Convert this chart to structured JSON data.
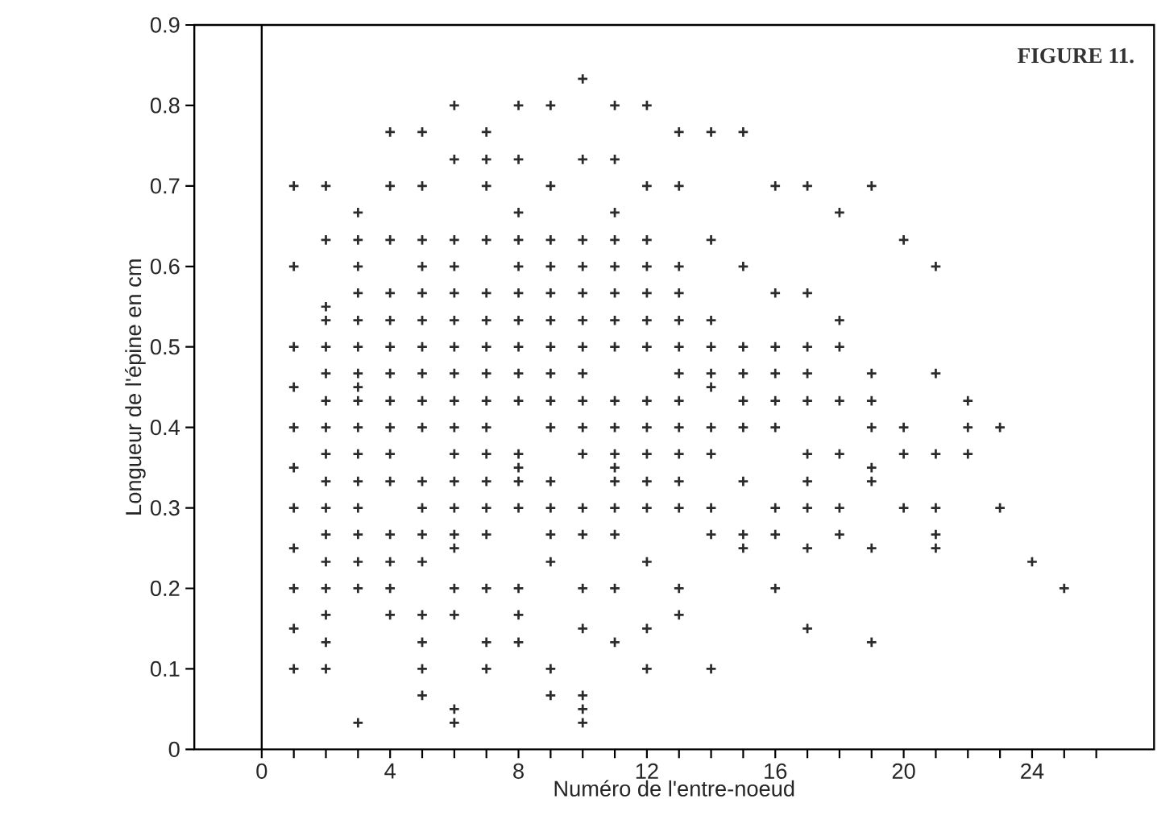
{
  "chart_data": {
    "type": "scatter",
    "xlabel": "Numéro de l'entre-noeud",
    "ylabel": "Longueur de l'épine en cm",
    "annotations": [
      "FIGURE 11."
    ],
    "xlim": [
      -2.1,
      27.8
    ],
    "ylim": [
      0,
      0.9
    ],
    "xticks": [
      0,
      {
        "value": 1,
        "label": null
      },
      {
        "value": 2,
        "label": null
      },
      {
        "value": 3,
        "label": null
      },
      4,
      {
        "value": 5,
        "label": null
      },
      {
        "value": 6,
        "label": null
      },
      {
        "value": 7,
        "label": null
      },
      8,
      {
        "value": 9,
        "label": null
      },
      {
        "value": 10,
        "label": null
      },
      {
        "value": 11,
        "label": null
      },
      12,
      {
        "value": 13,
        "label": null
      },
      {
        "value": 14,
        "label": null
      },
      {
        "value": 15,
        "label": null
      },
      16,
      {
        "value": 17,
        "label": null
      },
      {
        "value": 18,
        "label": null
      },
      {
        "value": 19,
        "label": null
      },
      20,
      {
        "value": 21,
        "label": null
      },
      {
        "value": 22,
        "label": null
      },
      {
        "value": 23,
        "label": null
      },
      24,
      {
        "value": 25,
        "label": null
      },
      {
        "value": 26,
        "label": null
      }
    ],
    "yticks": [
      0,
      0.1,
      0.2,
      0.3,
      0.4,
      0.5,
      0.6,
      0.7,
      0.8,
      0.9
    ],
    "ref_lines": [
      {
        "axis": "x",
        "value": 0
      }
    ],
    "grid": false,
    "marker": "cross",
    "series": [
      {
        "color": "#2b2b2b",
        "x": [
          1,
          1,
          1,
          1,
          1,
          1,
          1,
          1,
          1,
          1,
          1
        ],
        "values": [
          0.7,
          0.6,
          0.5,
          0.45,
          0.4,
          0.35,
          0.3,
          0.25,
          0.2,
          0.15,
          0.1
        ]
      },
      {
        "color": "#2b2b2b",
        "x": [
          2,
          2,
          2,
          2,
          2,
          2,
          2,
          2,
          2,
          2,
          2,
          2,
          2,
          2,
          2,
          2,
          2
        ],
        "values": [
          0.7,
          0.633,
          0.55,
          0.533,
          0.5,
          0.467,
          0.433,
          0.4,
          0.367,
          0.333,
          0.3,
          0.267,
          0.233,
          0.2,
          0.167,
          0.133,
          0.1
        ]
      },
      {
        "color": "#2b2b2b",
        "x": [
          3,
          3,
          3,
          3,
          3,
          3,
          3,
          3,
          3,
          3,
          3,
          3,
          3,
          3,
          3,
          3,
          3
        ],
        "values": [
          0.667,
          0.633,
          0.6,
          0.567,
          0.533,
          0.5,
          0.467,
          0.45,
          0.433,
          0.4,
          0.367,
          0.333,
          0.3,
          0.267,
          0.233,
          0.2,
          0.033
        ]
      },
      {
        "color": "#2b2b2b",
        "x": [
          4,
          4,
          4,
          4,
          4,
          4,
          4,
          4,
          4,
          4,
          4,
          4,
          4,
          4,
          4
        ],
        "values": [
          0.767,
          0.7,
          0.633,
          0.567,
          0.533,
          0.5,
          0.467,
          0.433,
          0.4,
          0.367,
          0.333,
          0.267,
          0.233,
          0.2,
          0.167
        ]
      },
      {
        "color": "#2b2b2b",
        "x": [
          5,
          5,
          5,
          5,
          5,
          5,
          5,
          5,
          5,
          5,
          5,
          5,
          5,
          5,
          5,
          5,
          5,
          5
        ],
        "values": [
          0.767,
          0.7,
          0.633,
          0.6,
          0.567,
          0.533,
          0.5,
          0.467,
          0.433,
          0.4,
          0.333,
          0.3,
          0.267,
          0.233,
          0.167,
          0.133,
          0.1,
          0.067
        ]
      },
      {
        "color": "#2b2b2b",
        "x": [
          6,
          6,
          6,
          6,
          6,
          6,
          6,
          6,
          6,
          6,
          6,
          6,
          6,
          6,
          6,
          6,
          6,
          6,
          6
        ],
        "values": [
          0.8,
          0.733,
          0.633,
          0.6,
          0.567,
          0.533,
          0.5,
          0.467,
          0.433,
          0.4,
          0.367,
          0.333,
          0.3,
          0.267,
          0.25,
          0.2,
          0.167,
          0.05,
          0.033
        ]
      },
      {
        "color": "#2b2b2b",
        "x": [
          7,
          7,
          7,
          7,
          7,
          7,
          7,
          7,
          7,
          7,
          7,
          7,
          7,
          7,
          7,
          7,
          7
        ],
        "values": [
          0.767,
          0.733,
          0.7,
          0.633,
          0.567,
          0.533,
          0.5,
          0.467,
          0.433,
          0.4,
          0.367,
          0.333,
          0.3,
          0.267,
          0.2,
          0.133,
          0.1
        ]
      },
      {
        "color": "#2b2b2b",
        "x": [
          8,
          8,
          8,
          8,
          8,
          8,
          8,
          8,
          8,
          8,
          8,
          8,
          8,
          8,
          8,
          8,
          8
        ],
        "values": [
          0.8,
          0.733,
          0.667,
          0.633,
          0.6,
          0.567,
          0.533,
          0.5,
          0.467,
          0.433,
          0.367,
          0.35,
          0.333,
          0.3,
          0.2,
          0.167,
          0.133
        ]
      },
      {
        "color": "#2b2b2b",
        "x": [
          9,
          9,
          9,
          9,
          9,
          9,
          9,
          9,
          9,
          9,
          9,
          9,
          9,
          9,
          9,
          9
        ],
        "values": [
          0.8,
          0.7,
          0.633,
          0.6,
          0.567,
          0.533,
          0.5,
          0.467,
          0.433,
          0.4,
          0.333,
          0.3,
          0.267,
          0.233,
          0.1,
          0.067
        ]
      },
      {
        "color": "#2b2b2b",
        "x": [
          10,
          10,
          10,
          10,
          10,
          10,
          10,
          10,
          10,
          10,
          10,
          10,
          10,
          10,
          10,
          10,
          10,
          10
        ],
        "values": [
          0.833,
          0.733,
          0.633,
          0.6,
          0.567,
          0.533,
          0.5,
          0.467,
          0.433,
          0.4,
          0.367,
          0.3,
          0.267,
          0.2,
          0.15,
          0.067,
          0.05,
          0.033
        ]
      },
      {
        "color": "#2b2b2b",
        "x": [
          11,
          11,
          11,
          11,
          11,
          11,
          11,
          11,
          11,
          11,
          11,
          11,
          11,
          11,
          11,
          11,
          11
        ],
        "values": [
          0.8,
          0.733,
          0.667,
          0.633,
          0.6,
          0.567,
          0.533,
          0.5,
          0.433,
          0.4,
          0.367,
          0.35,
          0.333,
          0.3,
          0.267,
          0.2,
          0.133
        ]
      },
      {
        "color": "#2b2b2b",
        "x": [
          12,
          12,
          12,
          12,
          12,
          12,
          12,
          12,
          12,
          12,
          12,
          12,
          12,
          12,
          12
        ],
        "values": [
          0.8,
          0.7,
          0.633,
          0.6,
          0.567,
          0.533,
          0.5,
          0.433,
          0.4,
          0.367,
          0.333,
          0.3,
          0.233,
          0.15,
          0.1
        ]
      },
      {
        "color": "#2b2b2b",
        "x": [
          13,
          13,
          13,
          13,
          13,
          13,
          13,
          13,
          13,
          13,
          13,
          13,
          13,
          13
        ],
        "values": [
          0.767,
          0.7,
          0.6,
          0.567,
          0.533,
          0.5,
          0.467,
          0.433,
          0.4,
          0.367,
          0.333,
          0.3,
          0.2,
          0.167
        ]
      },
      {
        "color": "#2b2b2b",
        "x": [
          14,
          14,
          14,
          14,
          14,
          14,
          14,
          14,
          14,
          14,
          14
        ],
        "values": [
          0.767,
          0.633,
          0.533,
          0.5,
          0.467,
          0.45,
          0.4,
          0.367,
          0.3,
          0.267,
          0.1
        ]
      },
      {
        "color": "#2b2b2b",
        "x": [
          15,
          15,
          15,
          15,
          15,
          15,
          15,
          15,
          15
        ],
        "values": [
          0.767,
          0.6,
          0.5,
          0.467,
          0.433,
          0.4,
          0.333,
          0.267,
          0.25
        ]
      },
      {
        "color": "#2b2b2b",
        "x": [
          16,
          16,
          16,
          16,
          16,
          16,
          16,
          16,
          16
        ],
        "values": [
          0.7,
          0.567,
          0.5,
          0.467,
          0.433,
          0.4,
          0.3,
          0.267,
          0.2
        ]
      },
      {
        "color": "#2b2b2b",
        "x": [
          17,
          17,
          17,
          17,
          17,
          17,
          17,
          17,
          17,
          17
        ],
        "values": [
          0.7,
          0.567,
          0.5,
          0.467,
          0.433,
          0.367,
          0.333,
          0.3,
          0.25,
          0.15
        ]
      },
      {
        "color": "#2b2b2b",
        "x": [
          18,
          18,
          18,
          18,
          18,
          18,
          18
        ],
        "values": [
          0.667,
          0.533,
          0.5,
          0.433,
          0.367,
          0.3,
          0.267
        ]
      },
      {
        "color": "#2b2b2b",
        "x": [
          19,
          19,
          19,
          19,
          19,
          19,
          19,
          19
        ],
        "values": [
          0.7,
          0.467,
          0.433,
          0.4,
          0.35,
          0.333,
          0.25,
          0.133
        ]
      },
      {
        "color": "#2b2b2b",
        "x": [
          20,
          20,
          20,
          20
        ],
        "values": [
          0.633,
          0.4,
          0.367,
          0.3
        ]
      },
      {
        "color": "#2b2b2b",
        "x": [
          21,
          21,
          21,
          21,
          21,
          21
        ],
        "values": [
          0.6,
          0.467,
          0.367,
          0.3,
          0.267,
          0.25
        ]
      },
      {
        "color": "#2b2b2b",
        "x": [
          22,
          22,
          22
        ],
        "values": [
          0.433,
          0.4,
          0.367
        ]
      },
      {
        "color": "#2b2b2b",
        "x": [
          23,
          23
        ],
        "values": [
          0.4,
          0.3
        ]
      },
      {
        "color": "#2b2b2b",
        "x": [
          24
        ],
        "values": [
          0.233
        ]
      },
      {
        "color": "#2b2b2b",
        "x": [
          25
        ],
        "values": [
          0.2
        ]
      }
    ]
  }
}
